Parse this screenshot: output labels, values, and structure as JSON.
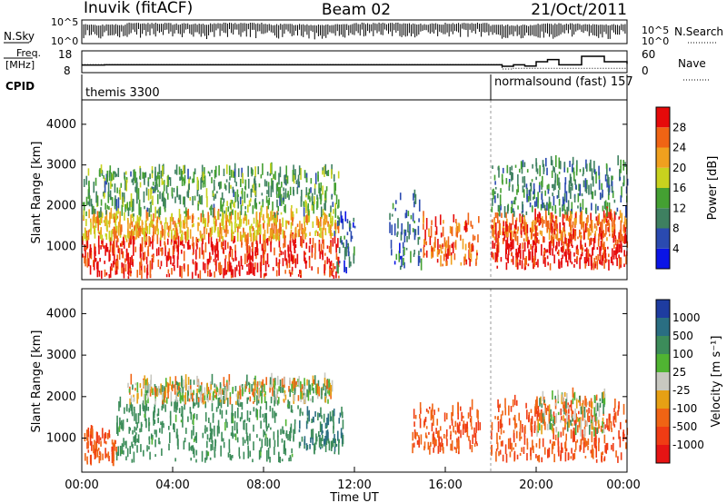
{
  "header": {
    "station": "Inuvik (fitACF)",
    "beam": "Beam 02",
    "date": "21/Oct/2011"
  },
  "noise_panel": {
    "left_label": "N.Sky",
    "right_label": "N.Search",
    "left_ticks": [
      "10^5",
      "10^0"
    ],
    "right_ticks": [
      "10^5",
      "10^0"
    ]
  },
  "freq_panel": {
    "left_label_top": "Freq.",
    "left_label_bottom": "[MHz]",
    "left_ticks": [
      "18",
      "8"
    ],
    "right_label": "Nave",
    "right_ticks": [
      "60",
      "0"
    ]
  },
  "cpid": {
    "label": "CPID",
    "modes": [
      {
        "name": "themis 3300",
        "start_hour": 0
      },
      {
        "name": "normalsound (fast) 157",
        "start_hour": 18.0
      }
    ]
  },
  "x_axis": {
    "label": "Time UT",
    "tick_labels": [
      "00:00",
      "04:00",
      "08:00",
      "12:00",
      "16:00",
      "20:00",
      "00:00"
    ],
    "range_hours": [
      0,
      24
    ]
  },
  "y_axis": {
    "label": "Slant Range [km]",
    "tick_labels": [
      "1000",
      "2000",
      "3000",
      "4000"
    ],
    "range_km": [
      180,
      4600
    ]
  },
  "colorbars": {
    "power": {
      "title": "Power [dB]",
      "tick_labels": [
        "4",
        "8",
        "12",
        "16",
        "20",
        "24",
        "28"
      ],
      "colors": [
        "#0a14e6",
        "#2a4ab0",
        "#3e8060",
        "#44a032",
        "#c8d21e",
        "#f0a01e",
        "#f06414",
        "#e60a0a"
      ]
    },
    "velocity": {
      "title": "Velocity [m s⁻¹]",
      "tick_labels": [
        "1000",
        "500",
        "100",
        "25",
        "-25",
        "-100",
        "-500",
        "-1000"
      ],
      "colors": [
        "#1e3ca0",
        "#2a6e82",
        "#3c8c5a",
        "#50b432",
        "#c8c8c0",
        "#e6a014",
        "#f06414",
        "#f03c14",
        "#e61414"
      ]
    }
  },
  "chart_data": [
    {
      "type": "line",
      "title": "N.Sky / N.Search",
      "x": [
        0,
        2,
        4,
        6,
        8,
        10,
        12,
        14,
        16,
        18,
        20,
        22,
        24
      ],
      "series": [
        {
          "name": "N.Sky",
          "values": [
            10000,
            20000,
            15000,
            20000,
            12000,
            10000,
            20000,
            15000,
            20000,
            8000,
            15000,
            10000,
            20000
          ]
        },
        {
          "name": "N.Search",
          "values": [
            3000,
            6000,
            5000,
            6000,
            4000,
            3000,
            6000,
            5000,
            6000,
            3000,
            5000,
            3000,
            6000
          ]
        }
      ],
      "ylim": [
        1,
        100000
      ]
    },
    {
      "type": "line",
      "title": "Freq. / Nave",
      "x": [
        0,
        1,
        2,
        4,
        6,
        8,
        10,
        12,
        14,
        16,
        18,
        18.5,
        19,
        19.5,
        20,
        20.5,
        21,
        22,
        23,
        24
      ],
      "series": [
        {
          "name": "Freq.",
          "values": [
            11.5,
            11.6,
            11.6,
            11.6,
            11.6,
            11.6,
            11.6,
            11.6,
            11.6,
            11.6,
            11.6,
            10.9,
            11.6,
            11.0,
            13.0,
            14.0,
            11.6,
            15.5,
            13.0,
            12.0
          ]
        },
        {
          "name": "Nave",
          "values": [
            22,
            22,
            22,
            22,
            22,
            22,
            22,
            22,
            22,
            22,
            22,
            10,
            12,
            12,
            12,
            12,
            12,
            12,
            12,
            12
          ]
        }
      ]
    },
    {
      "type": "heatmap",
      "title": "Power [dB]",
      "xlabel": "Time UT",
      "ylabel": "Slant Range [km]",
      "zlim": [
        0,
        30
      ],
      "regions": [
        {
          "t": [
            0.0,
            11.3
          ],
          "range": [
            200,
            1100
          ],
          "power": 28
        },
        {
          "t": [
            0.0,
            11.3
          ],
          "range": [
            1100,
            1700
          ],
          "power": 20
        },
        {
          "t": [
            0.0,
            11.3
          ],
          "range": [
            1700,
            2800
          ],
          "power": 12
        },
        {
          "t": [
            11.0,
            12.0
          ],
          "range": [
            300,
            1700
          ],
          "power": 8
        },
        {
          "t": [
            13.5,
            15.0
          ],
          "range": [
            400,
            2200
          ],
          "power": 8
        },
        {
          "t": [
            15.0,
            17.5
          ],
          "range": [
            500,
            1600
          ],
          "power": 24
        },
        {
          "t": [
            18.0,
            24.0
          ],
          "range": [
            400,
            1100
          ],
          "power": 28
        },
        {
          "t": [
            18.0,
            24.0
          ],
          "range": [
            1100,
            1700
          ],
          "power": 24
        },
        {
          "t": [
            18.0,
            24.0
          ],
          "range": [
            1700,
            3000
          ],
          "power": 10
        }
      ]
    },
    {
      "type": "heatmap",
      "title": "Velocity [m s-1]",
      "xlabel": "Time UT",
      "ylabel": "Slant Range [km]",
      "zlim": [
        -1000,
        1000
      ],
      "regions": [
        {
          "t": [
            0.0,
            1.5
          ],
          "range": [
            300,
            1100
          ],
          "velocity": -300
        },
        {
          "t": [
            1.5,
            9.5
          ],
          "range": [
            400,
            1800
          ],
          "velocity": 150
        },
        {
          "t": [
            2.0,
            11.0
          ],
          "range": [
            1800,
            2300
          ],
          "velocity": 0
        },
        {
          "t": [
            9.5,
            11.5
          ],
          "range": [
            600,
            1600
          ],
          "velocity": 300
        },
        {
          "t": [
            14.5,
            17.5
          ],
          "range": [
            600,
            1700
          ],
          "velocity": -300
        },
        {
          "t": [
            18.0,
            24.0
          ],
          "range": [
            400,
            1800
          ],
          "velocity": -300
        },
        {
          "t": [
            20.0,
            23.0
          ],
          "range": [
            1000,
            2000
          ],
          "velocity": 0
        }
      ]
    }
  ]
}
